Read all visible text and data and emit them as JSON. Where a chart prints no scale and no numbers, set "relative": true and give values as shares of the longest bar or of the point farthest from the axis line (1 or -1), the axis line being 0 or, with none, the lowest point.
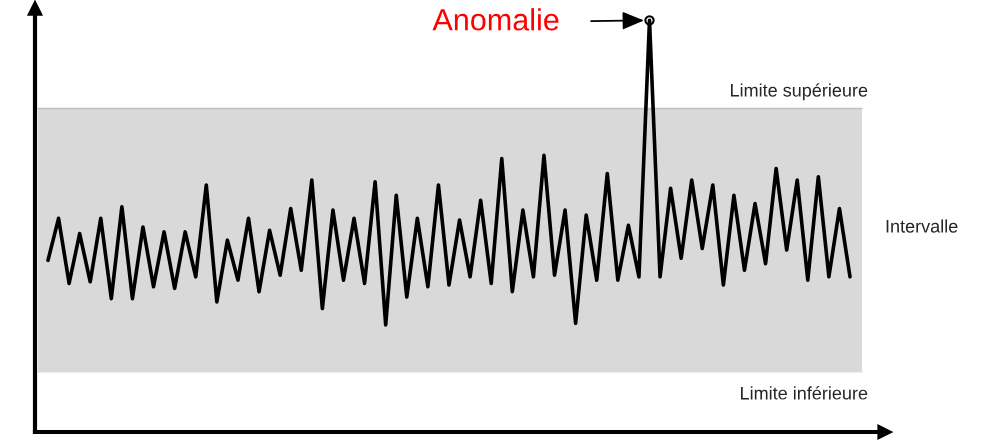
{
  "chart_data": {
    "type": "line",
    "relative": true,
    "categories": [
      null,
      null,
      null,
      null,
      null,
      null,
      null,
      null,
      null,
      null,
      null,
      null,
      null,
      null,
      null,
      null,
      null,
      null,
      null,
      null,
      null,
      null,
      null,
      null,
      null,
      null,
      null,
      null,
      null,
      null,
      null,
      null,
      null,
      null,
      null,
      null,
      null,
      null,
      null,
      null,
      null,
      null,
      null,
      null,
      null,
      null,
      null,
      null,
      null,
      null,
      null,
      null,
      null,
      null,
      null,
      null,
      null,
      null,
      null,
      null,
      null,
      null,
      null,
      null,
      null,
      null,
      null,
      null,
      null,
      null,
      null,
      null,
      null,
      null,
      null,
      null,
      null
    ],
    "series": [
      {
        "color": "#000000",
        "values": [
          0.417,
          0.519,
          0.361,
          0.482,
          0.365,
          0.519,
          0.324,
          0.547,
          0.324,
          0.498,
          0.353,
          0.486,
          0.349,
          0.486,
          0.377,
          0.6,
          0.316,
          0.466,
          0.369,
          0.519,
          0.341,
          0.49,
          0.381,
          0.543,
          0.393,
          0.612,
          0.3,
          0.539,
          0.369,
          0.519,
          0.361,
          0.608,
          0.26,
          0.575,
          0.328,
          0.519,
          0.353,
          0.6,
          0.357,
          0.515,
          0.377,
          0.563,
          0.361,
          0.664,
          0.341,
          0.539,
          0.377,
          0.672,
          0.381,
          0.539,
          0.264,
          0.527,
          0.369,
          0.628,
          0.369,
          0.502,
          0.377,
          1.0,
          0.377,
          0.592,
          0.422,
          0.612,
          0.446,
          0.6,
          0.357,
          0.575,
          0.393,
          0.555,
          0.409,
          0.64,
          0.442,
          0.612,
          0.369,
          0.62,
          0.377,
          0.543,
          0.377
        ]
      }
    ],
    "bands": [
      {
        "axis": "y",
        "from": 0.146,
        "to": 0.786,
        "label": "Intervalle",
        "color": "#d9d9d9"
      }
    ],
    "ref_lines": [
      {
        "axis": "y",
        "value": 0.786,
        "label": "Limite supérieure",
        "color": "#c0c0c0"
      },
      {
        "axis": "y",
        "value": 0.146,
        "label": "Limite inférieure",
        "color": "#d9d9d9"
      }
    ],
    "annotations": [
      "Anomalie"
    ],
    "legend": false,
    "line_style": "solid",
    "marker": "none"
  }
}
